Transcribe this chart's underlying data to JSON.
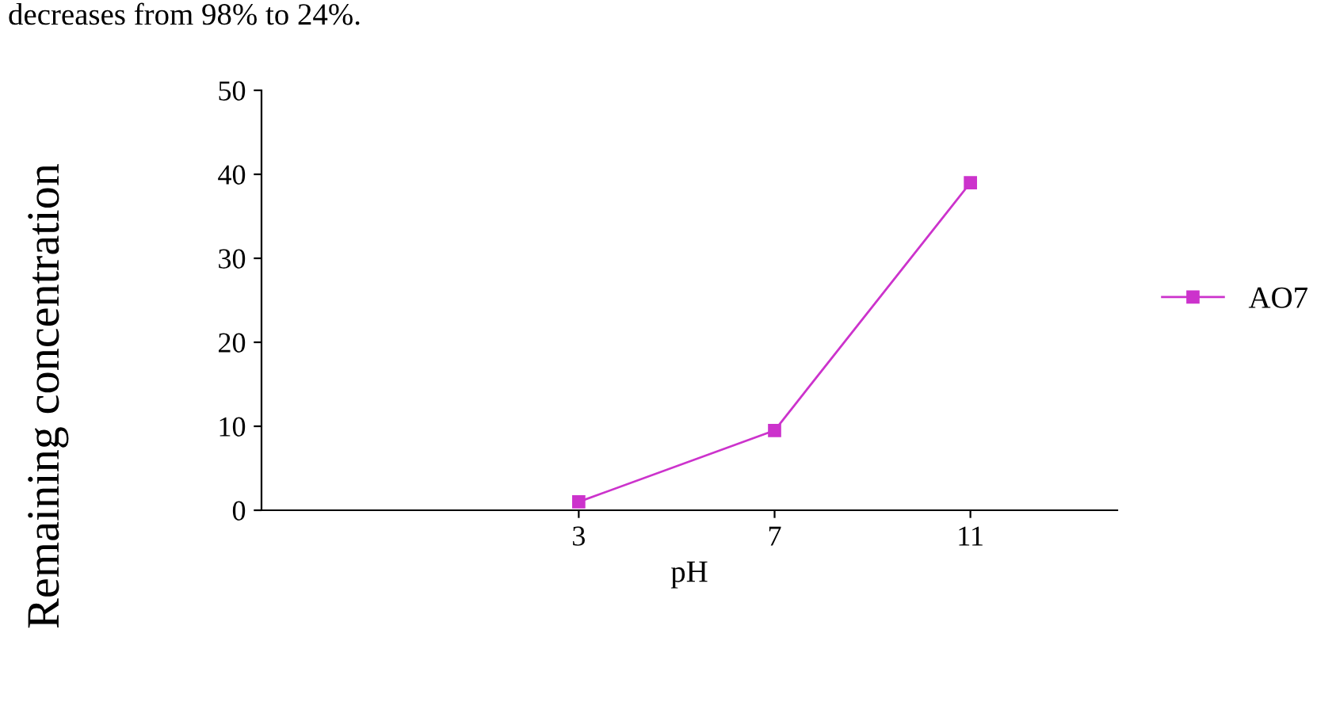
{
  "chart_data": {
    "type": "line",
    "xlabel": "pH",
    "ylabel": "Remaining concentration",
    "annotations": [
      "decreases from 98% to 24%."
    ],
    "categories": [
      "3",
      "7",
      "11"
    ],
    "series": [
      {
        "name": "AO7",
        "color": "#cc33cc",
        "values": [
          1,
          9.5,
          39
        ]
      }
    ],
    "ylim": [
      0,
      50
    ],
    "yticks": [
      0,
      10,
      20,
      30,
      40,
      50
    ],
    "marker": "square",
    "line_style": "solid",
    "legend": "right",
    "grid": false
  }
}
